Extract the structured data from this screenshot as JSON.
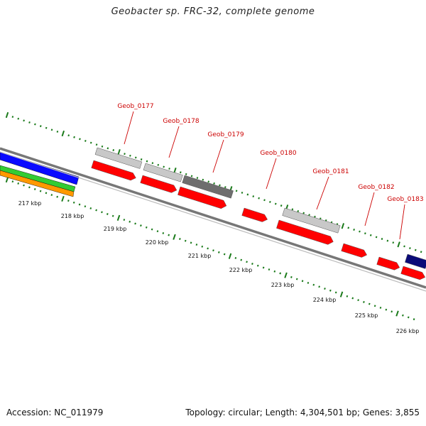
{
  "title": "Geobacter sp. FRC-32, complete genome",
  "footer": {
    "accession": "Accession: NC_011979",
    "summary": "Topology: circular; Length: 4,304,501 bp; Genes: 3,855"
  },
  "colors": {
    "background": "#ffffff",
    "backbone": "#777777",
    "tick": "#1a7a1a",
    "cds_forward": "#ff0000",
    "gene_light": "#c8c8c8",
    "gene_dark": "#6e6e6e",
    "gene_navy": "#0a0a78",
    "track_blue": "#0a0aff",
    "track_green": "#33cc33",
    "track_orange": "#ff9900",
    "label": "#cc0000"
  },
  "map": {
    "scale_labels": [
      "217 kbp",
      "218 kbp",
      "219 kbp",
      "220 kbp",
      "221 kbp",
      "222 kbp",
      "223 kbp",
      "224 kbp",
      "225 kbp",
      "226 kbp"
    ],
    "gene_labels": [
      "Geob_0177",
      "Geob_0178",
      "Geob_0179",
      "Geob_0180",
      "Geob_0181",
      "Geob_0182",
      "Geob_0183"
    ]
  }
}
